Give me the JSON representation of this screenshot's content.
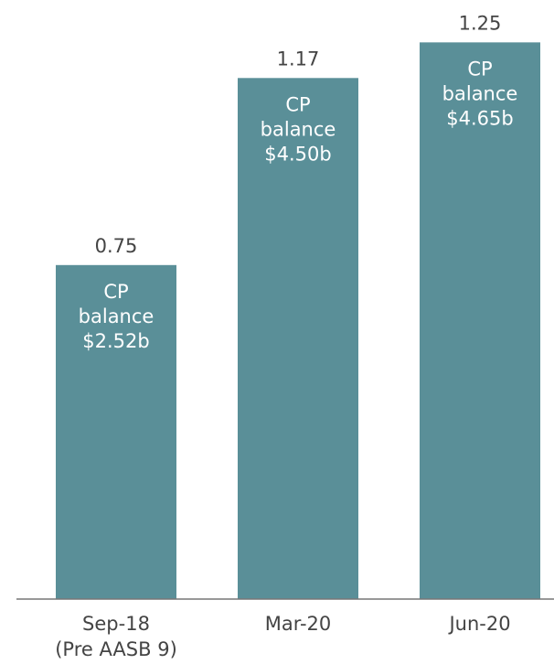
{
  "chart_data": {
    "type": "bar",
    "categories": [
      [
        "Sep-18",
        "(Pre AASB 9)"
      ],
      [
        "Mar-20"
      ],
      [
        "Jun-20"
      ]
    ],
    "values": [
      0.75,
      1.17,
      1.25
    ],
    "bar_labels": [
      [
        "CP",
        "balance",
        "$2.52b"
      ],
      [
        "CP",
        "balance",
        "$4.50b"
      ],
      [
        "CP",
        "balance",
        "$4.65b"
      ]
    ],
    "color": "#5a8f98",
    "ylim": [
      0,
      1.3
    ]
  }
}
